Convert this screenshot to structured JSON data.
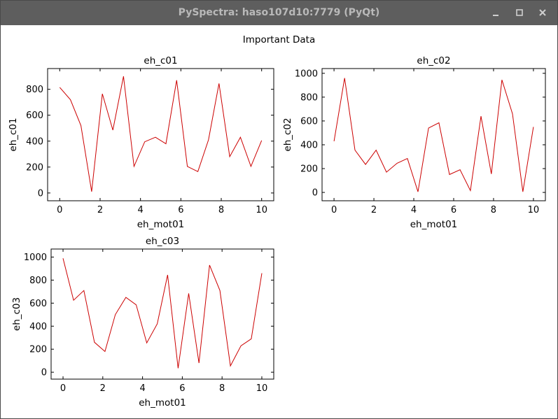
{
  "window": {
    "title": "PySpectra: haso107d10:7779 (PyQt)"
  },
  "figure": {
    "title": "Important Data"
  },
  "line_color": "#cc0000",
  "chart_data": [
    {
      "type": "line",
      "title": "eh_c01",
      "xlabel": "eh_mot01",
      "ylabel": "eh_c01",
      "xlim": [
        -0.6,
        10.6
      ],
      "ylim": [
        -60,
        960
      ],
      "xticks": [
        0,
        2,
        4,
        6,
        8,
        10
      ],
      "yticks": [
        0,
        200,
        400,
        600,
        800
      ],
      "grid": false,
      "series": [
        {
          "x": [
            0,
            0.53,
            1.05,
            1.58,
            2.11,
            2.63,
            3.16,
            3.68,
            4.21,
            4.74,
            5.26,
            5.79,
            6.32,
            6.84,
            7.37,
            7.89,
            8.42,
            8.95,
            9.47,
            10
          ],
          "y": [
            815,
            720,
            520,
            10,
            765,
            485,
            900,
            205,
            395,
            430,
            380,
            870,
            205,
            165,
            410,
            845,
            280,
            430,
            205,
            405
          ]
        }
      ]
    },
    {
      "type": "line",
      "title": "eh_c02",
      "xlabel": "eh_mot01",
      "ylabel": "eh_c02",
      "xlim": [
        -0.6,
        10.6
      ],
      "ylim": [
        -70,
        1040
      ],
      "xticks": [
        0,
        2,
        4,
        6,
        8,
        10
      ],
      "yticks": [
        0,
        200,
        400,
        600,
        800,
        1000
      ],
      "grid": false,
      "series": [
        {
          "x": [
            0,
            0.53,
            1.05,
            1.58,
            2.11,
            2.63,
            3.16,
            3.68,
            4.21,
            4.74,
            5.26,
            5.79,
            6.32,
            6.84,
            7.37,
            7.89,
            8.42,
            8.95,
            9.47,
            10
          ],
          "y": [
            430,
            960,
            355,
            235,
            355,
            170,
            245,
            285,
            5,
            540,
            585,
            150,
            190,
            15,
            640,
            155,
            945,
            660,
            5,
            550
          ]
        }
      ]
    },
    {
      "type": "line",
      "title": "eh_c03",
      "xlabel": "eh_mot01",
      "ylabel": "eh_c03",
      "xlim": [
        -0.6,
        10.6
      ],
      "ylim": [
        -60,
        1070
      ],
      "xticks": [
        0,
        2,
        4,
        6,
        8,
        10
      ],
      "yticks": [
        0,
        200,
        400,
        600,
        800,
        1000
      ],
      "grid": false,
      "series": [
        {
          "x": [
            0,
            0.53,
            1.05,
            1.58,
            2.11,
            2.63,
            3.16,
            3.68,
            4.21,
            4.74,
            5.26,
            5.79,
            6.32,
            6.84,
            7.37,
            7.89,
            8.42,
            8.95,
            9.47,
            10
          ],
          "y": [
            990,
            625,
            710,
            260,
            180,
            500,
            650,
            585,
            255,
            420,
            845,
            35,
            685,
            80,
            930,
            710,
            55,
            230,
            290,
            860
          ]
        }
      ]
    }
  ]
}
